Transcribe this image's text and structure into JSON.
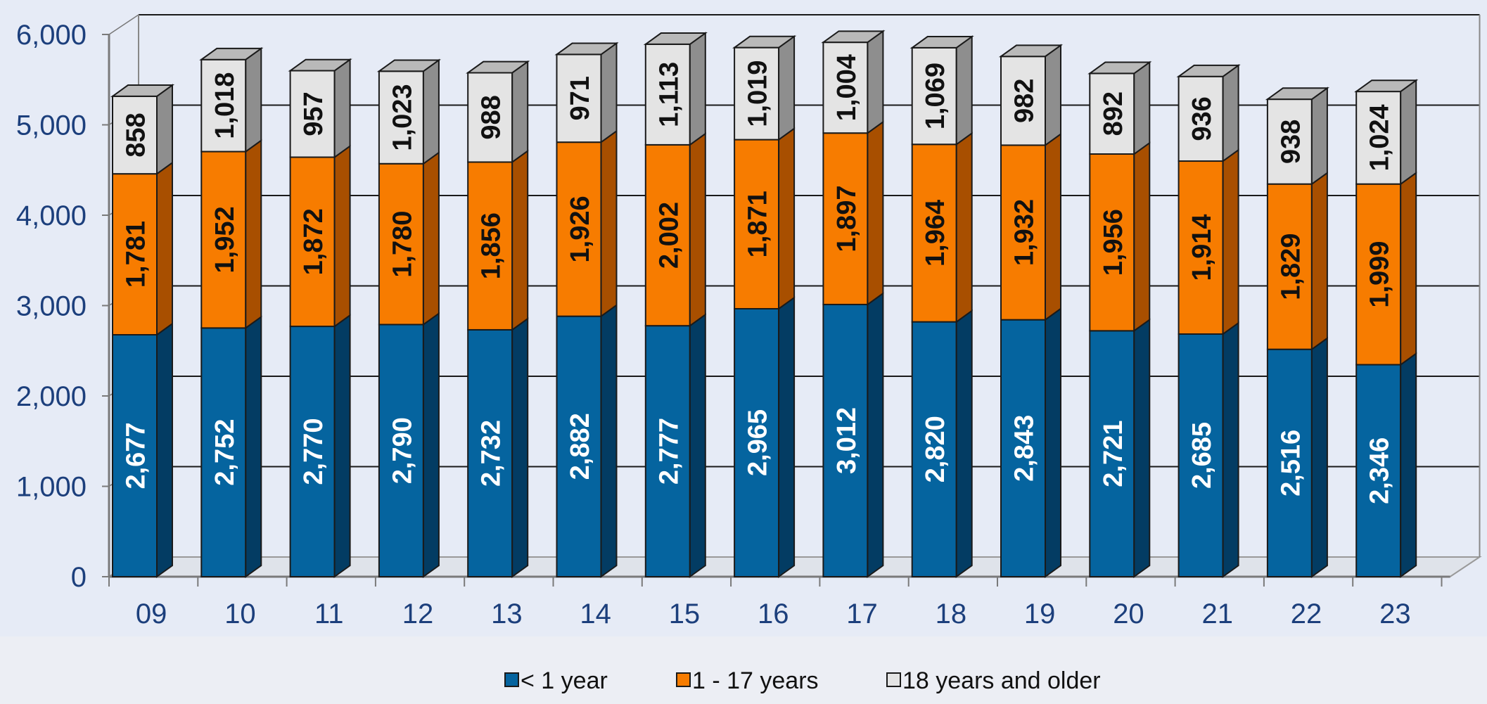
{
  "chart_data": {
    "type": "bar",
    "stacked": true,
    "three_d": true,
    "categories": [
      "09",
      "10",
      "11",
      "12",
      "13",
      "14",
      "15",
      "16",
      "17",
      "18",
      "19",
      "20",
      "21",
      "22",
      "23"
    ],
    "series": [
      {
        "name": "< 1 year",
        "color": "#05649f",
        "side": "#033c63",
        "top": "#2a7fb8",
        "label_color": "#ffffff",
        "values": [
          2677,
          2752,
          2770,
          2790,
          2732,
          2882,
          2777,
          2965,
          3012,
          2820,
          2843,
          2721,
          2685,
          2516,
          2346
        ],
        "labels": [
          "2,677",
          "2,752",
          "2,770",
          "2,790",
          "2,732",
          "2,882",
          "2,777",
          "2,965",
          "3,012",
          "2,820",
          "2,843",
          "2,721",
          "2,685",
          "2,516",
          "2,346"
        ]
      },
      {
        "name": "1 - 17 years",
        "color": "#f77c00",
        "side": "#a84f00",
        "top": "#f99a3a",
        "label_color": "#111111",
        "values": [
          1781,
          1952,
          1872,
          1780,
          1856,
          1926,
          2002,
          1871,
          1897,
          1964,
          1932,
          1956,
          1914,
          1829,
          1999
        ],
        "labels": [
          "1,781",
          "1,952",
          "1,872",
          "1,780",
          "1,856",
          "1,926",
          "2,002",
          "1,871",
          "1,897",
          "1,964",
          "1,932",
          "1,956",
          "1,914",
          "1,829",
          "1,999"
        ]
      },
      {
        "name": "18 years and older",
        "color": "#e4e4e4",
        "side": "#8e8e8e",
        "top": "#b9b9b9",
        "label_color": "#111111",
        "values": [
          858,
          1018,
          957,
          1023,
          988,
          971,
          1113,
          1019,
          1004,
          1069,
          982,
          892,
          936,
          938,
          1024
        ],
        "labels": [
          "858",
          "1,018",
          "957",
          "1,023",
          "988",
          "971",
          "1,113",
          "1,019",
          "1,004",
          "1,069",
          "982",
          "892",
          "936",
          "938",
          "1,024"
        ]
      }
    ],
    "y_ticks": [
      "0",
      "1,000",
      "2,000",
      "3,000",
      "4,000",
      "5,000",
      "6,000"
    ],
    "ylim": [
      0,
      6000
    ],
    "grid": true,
    "legend_position": "bottom"
  }
}
